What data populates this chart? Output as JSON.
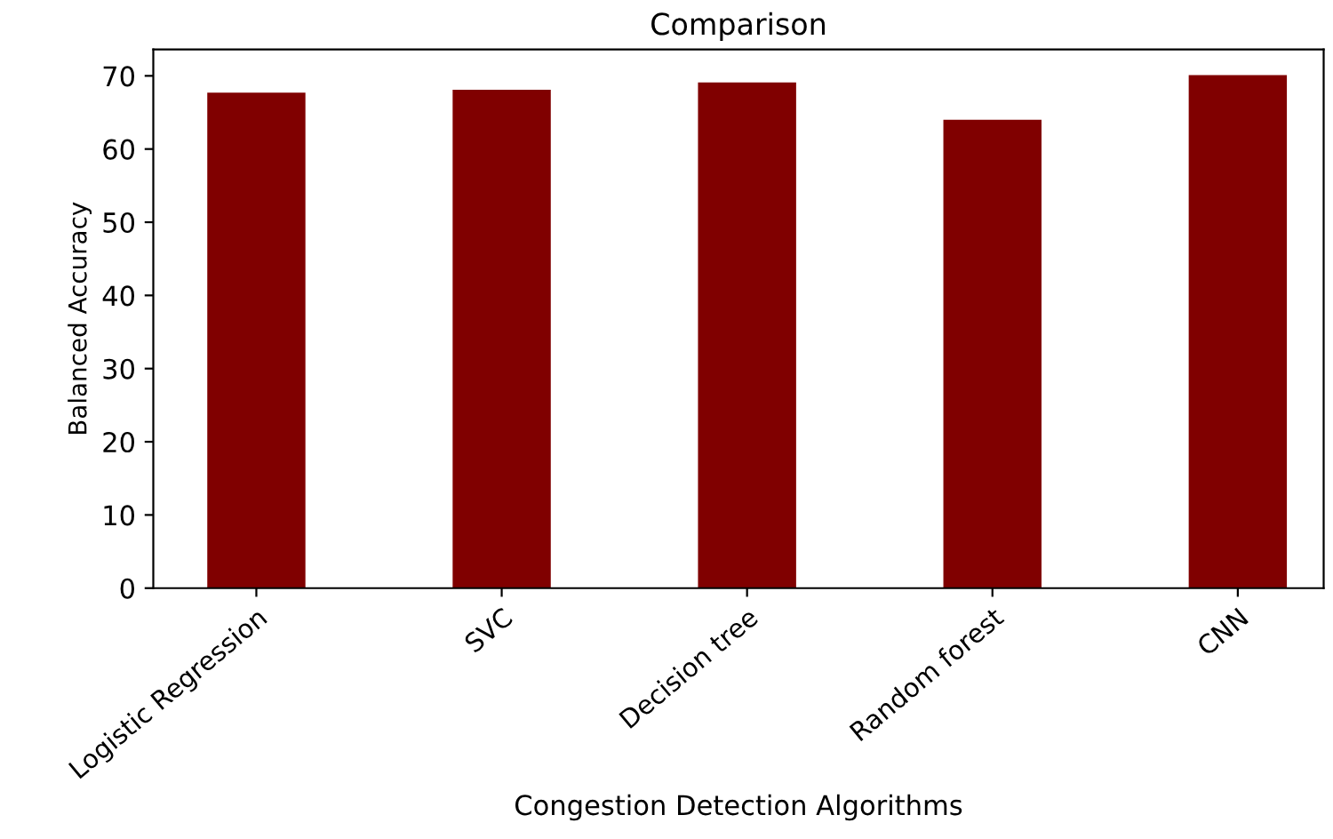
{
  "chart_data": {
    "type": "bar",
    "title": "Comparison",
    "xlabel": "Congestion Detection Algorithms",
    "ylabel": "Balanced Accuracy",
    "categories": [
      "Logistic Regression",
      "SVC",
      "Decision tree",
      "Random forest",
      "CNN"
    ],
    "values": [
      67.7,
      68.1,
      69.1,
      64,
      70.1
    ],
    "color": "#800000",
    "ylim": [
      0,
      73.6
    ],
    "yticks": [
      0,
      10,
      20,
      30,
      40,
      50,
      60,
      70
    ],
    "grid": false,
    "legend": false
  }
}
